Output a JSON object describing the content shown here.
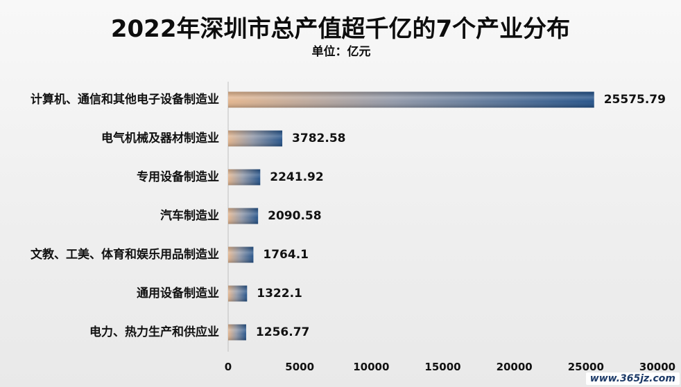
{
  "chart_data": {
    "type": "bar",
    "orientation": "horizontal",
    "title": "2022年深圳市总产值超千亿的7个产业分布",
    "subtitle": "单位：亿元",
    "categories": [
      "计算机、通信和其他电子设备制造业",
      "电气机械及器材制造业",
      "专用设备制造业",
      "汽车制造业",
      "文教、工美、体育和娱乐用品制造业",
      "通用设备制造业",
      "电力、热力生产和供应业"
    ],
    "values": [
      25575.79,
      3782.58,
      2241.92,
      2090.58,
      1764.1,
      1322.1,
      1256.77
    ],
    "data_labels": [
      "25575.79",
      "3782.58",
      "2241.92",
      "2090.58",
      "1764.1",
      "1322.1",
      "1256.77"
    ],
    "xlim": [
      0,
      30000
    ],
    "xticks": [
      0,
      5000,
      10000,
      15000,
      20000,
      25000,
      30000
    ],
    "grid": false,
    "legend": "none"
  },
  "colors": {
    "background": "#f2f2f2",
    "bar_start": "#e2b38b",
    "bar_end": "#1f4e86",
    "axis": "#bfbfbf",
    "text": "#111111"
  },
  "watermark": {
    "text": "www.365jz.com"
  }
}
